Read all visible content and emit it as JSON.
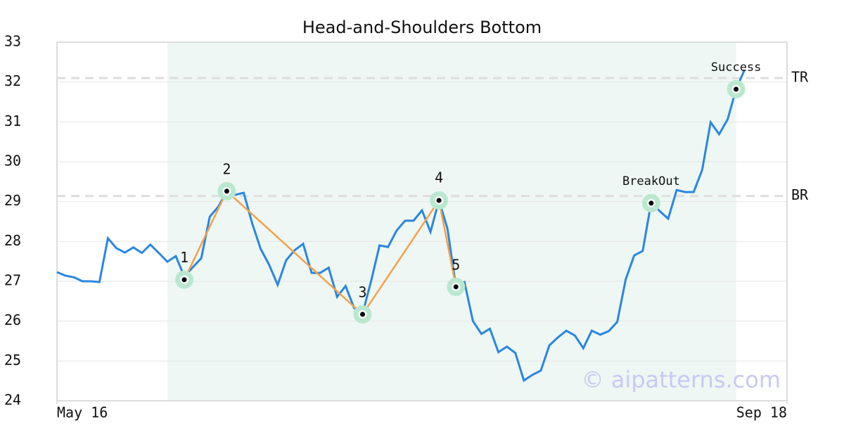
{
  "chart_data": {
    "type": "line",
    "title": "Head-and-Shoulders Bottom",
    "x": [
      0,
      1,
      2,
      3,
      4,
      5,
      6,
      7,
      8,
      9,
      10,
      11,
      12,
      13,
      14,
      15,
      16,
      17,
      18,
      19,
      20,
      21,
      22,
      23,
      24,
      25,
      26,
      27,
      28,
      29,
      30,
      31,
      32,
      33,
      34,
      35,
      36,
      37,
      38,
      39,
      40,
      41,
      42,
      43,
      44,
      45,
      46,
      47,
      48,
      49,
      50,
      51,
      52,
      53,
      54,
      55,
      56,
      57,
      58,
      59,
      60,
      61,
      62,
      63,
      64,
      65,
      66,
      67,
      68,
      69,
      70,
      71,
      72,
      73,
      74,
      75,
      76,
      77,
      78,
      79,
      80,
      81
    ],
    "values": [
      27.23,
      27.14,
      27.1,
      27.0,
      27.0,
      26.98,
      28.08,
      27.83,
      27.72,
      27.85,
      27.71,
      27.92,
      27.71,
      27.49,
      27.63,
      27.12,
      27.35,
      27.58,
      28.62,
      28.87,
      29.26,
      29.17,
      29.22,
      28.45,
      27.81,
      27.41,
      26.91,
      27.53,
      27.78,
      27.94,
      27.21,
      27.21,
      27.34,
      26.61,
      26.88,
      26.33,
      26.19,
      27.0,
      27.9,
      27.86,
      28.27,
      28.52,
      28.52,
      28.78,
      28.24,
      29.03,
      28.32,
      26.86,
      26.98,
      26.0,
      25.68,
      25.81,
      25.22,
      25.36,
      25.2,
      24.51,
      24.65,
      24.76,
      25.39,
      25.59,
      25.76,
      25.64,
      25.32,
      25.76,
      25.66,
      25.75,
      25.98,
      27.05,
      27.65,
      27.76,
      28.98,
      28.76,
      28.57,
      29.29,
      29.24,
      29.24,
      29.79,
      30.99,
      30.69,
      31.06,
      31.82,
      32.31
    ],
    "color": "#2a86e0",
    "xlim": [
      0,
      86
    ],
    "xticks": [
      {
        "value": 0,
        "label": "May 16"
      },
      {
        "value": 86,
        "label": "Sep 18"
      }
    ],
    "ylim": [
      24,
      33
    ],
    "yticks": [
      24,
      25,
      26,
      27,
      28,
      29,
      30,
      31,
      32,
      33
    ],
    "grid": true,
    "shaded_xrange": [
      13,
      80
    ],
    "pattern": {
      "x": [
        15,
        20,
        36,
        45,
        47
      ],
      "y": [
        27.04,
        29.26,
        26.17,
        29.03,
        26.86
      ],
      "labels": [
        "1",
        "2",
        "3",
        "4",
        "5"
      ],
      "color": "#f5a04a"
    },
    "signals": {
      "x": [
        70,
        80
      ],
      "y": [
        28.96,
        31.82
      ],
      "labels": [
        "BreakOut",
        "Success"
      ]
    },
    "levels": [
      {
        "label": "TR",
        "value": 32.1
      },
      {
        "label": "BR",
        "value": 29.14
      }
    ],
    "watermark": "© aipatterns.com"
  }
}
